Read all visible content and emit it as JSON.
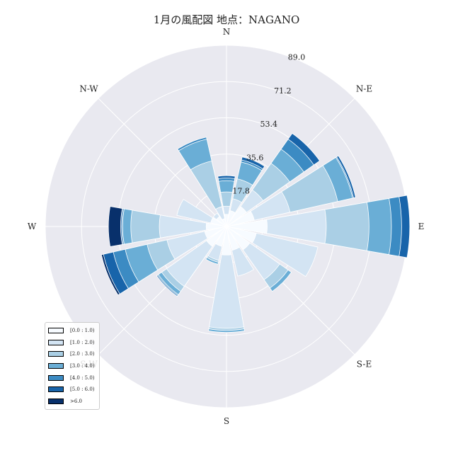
{
  "title": "1月の風配図 地点：NAGANO",
  "chart_data": {
    "type": "windrose",
    "directions": [
      "N",
      "NNE",
      "NE",
      "ENE",
      "E",
      "ESE",
      "SE",
      "SSE",
      "S",
      "SSW",
      "SW",
      "WSW",
      "W",
      "WNW",
      "NW",
      "NNW"
    ],
    "direction_labels": [
      {
        "label": "N",
        "angle": 0
      },
      {
        "label": "N-E",
        "angle": 45
      },
      {
        "label": "E",
        "angle": 90
      },
      {
        "label": "S-E",
        "angle": 135
      },
      {
        "label": "S",
        "angle": 180
      },
      {
        "label": "S-W",
        "angle": 225
      },
      {
        "label": "W",
        "angle": 270
      },
      {
        "label": "N-W",
        "angle": 315
      }
    ],
    "radial_ticks": [
      "17.8",
      "35.6",
      "53.4",
      "71.2",
      "89.0"
    ],
    "rmax": 89.0,
    "bins": [
      "[0.0 : 1.0)",
      "[1.0 : 2.0)",
      "[2.0 : 3.0)",
      "[3.0 : 4.0)",
      "[4.0 : 5.0)",
      "[5.0 : 6.0)",
      ">6.0"
    ],
    "colors": [
      "#f7fbff",
      "#d3e4f3",
      "#aacfe5",
      "#6aaed6",
      "#3c8bc3",
      "#1864aa",
      "#08306b"
    ],
    "cumulative": [
      [
        6,
        10,
        17,
        22.5,
        23.8,
        25.0,
        25.0
      ],
      [
        8,
        14,
        24,
        32.5,
        33.5,
        35.0,
        35.0
      ],
      [
        12,
        22,
        38,
        46.5,
        52.5,
        56.0,
        56.0
      ],
      [
        14,
        32,
        56,
        63.5,
        64.0,
        65.0,
        65.0
      ],
      [
        20,
        49,
        70,
        81.0,
        86.0,
        90.0,
        90.0
      ],
      [
        15,
        46,
        46,
        46.0,
        46.0,
        46.0,
        46.0
      ],
      [
        14,
        32,
        37,
        39.0,
        39.0,
        39.0,
        39.0
      ],
      [
        12,
        25,
        25,
        25.0,
        25.0,
        25.0,
        25.0
      ],
      [
        14,
        50,
        51,
        52.0,
        52.0,
        52.0,
        52.0
      ],
      [
        10,
        17,
        18,
        19.0,
        19.0,
        19.0,
        19.0
      ],
      [
        12,
        36,
        39,
        41.0,
        41.5,
        42.0,
        42.0
      ],
      [
        11,
        30,
        40,
        51.0,
        57.0,
        62.0,
        63.0
      ],
      [
        10,
        33,
        47,
        51.0,
        51.5,
        52.0,
        58.0
      ],
      [
        8,
        25,
        25,
        25.0,
        25.0,
        25.0,
        25.0
      ],
      [
        6,
        8,
        8,
        8.0,
        8.0,
        8.0,
        8.0
      ],
      [
        4,
        10,
        33,
        44.0,
        45.0,
        45.0,
        45.0
      ]
    ]
  }
}
